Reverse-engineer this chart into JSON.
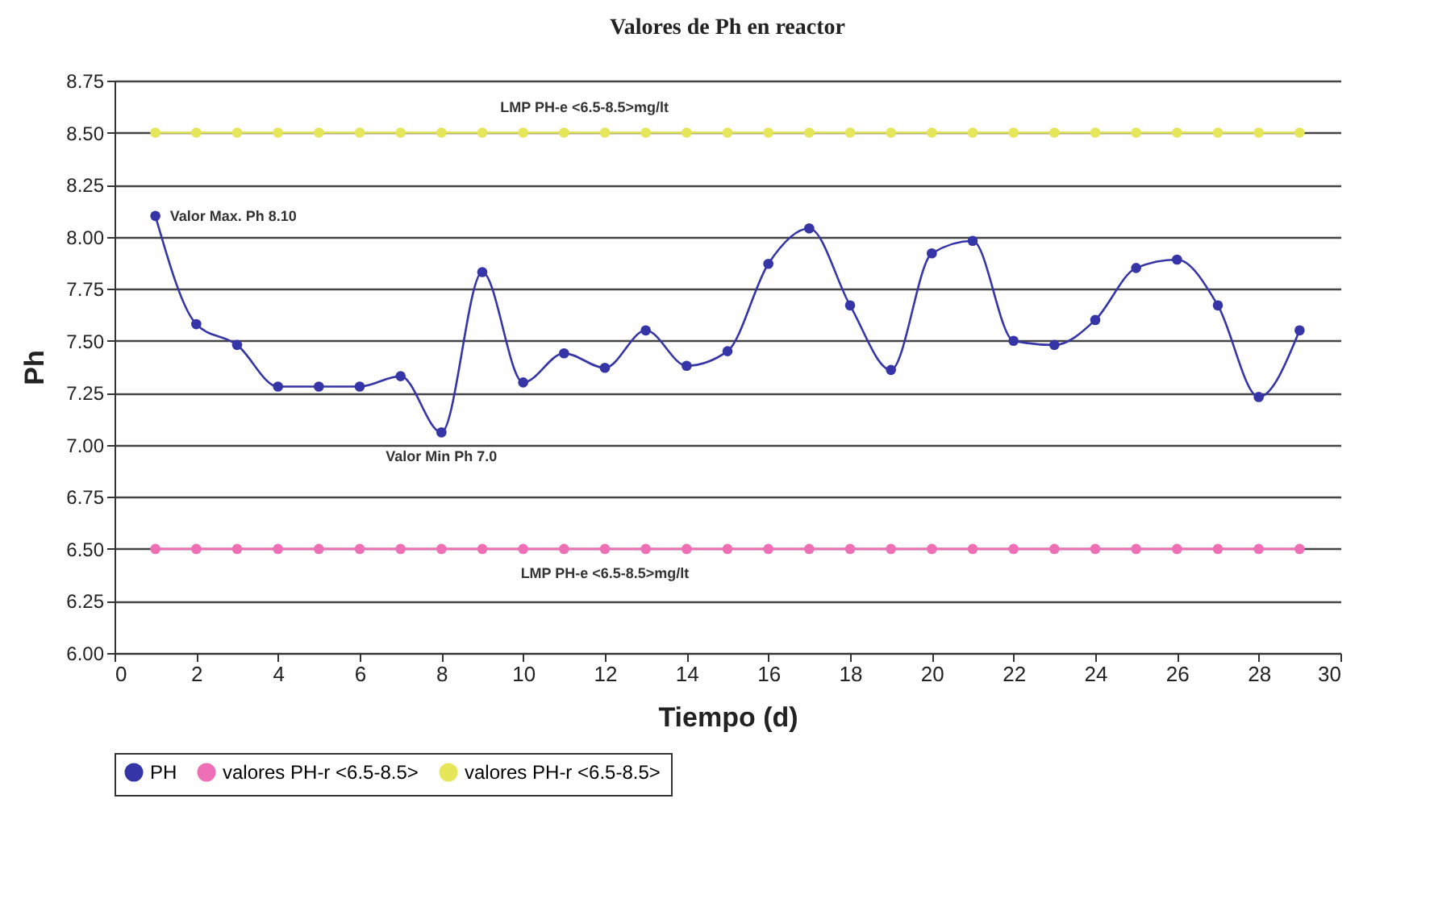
{
  "chart_data": {
    "type": "line",
    "title": "Valores de Ph en reactor",
    "xlabel": "Tiempo (d)",
    "ylabel": "Ph",
    "x": [
      1,
      2,
      3,
      4,
      5,
      6,
      7,
      8,
      9,
      10,
      11,
      12,
      13,
      14,
      15,
      16,
      17,
      18,
      19,
      20,
      21,
      22,
      23,
      24,
      25,
      26,
      27,
      28,
      29
    ],
    "series": [
      {
        "name": "PH",
        "color": "#3535a8",
        "values": [
          8.1,
          7.58,
          7.48,
          7.28,
          7.28,
          7.28,
          7.33,
          7.06,
          7.83,
          7.3,
          7.44,
          7.37,
          7.55,
          7.38,
          7.45,
          7.87,
          8.04,
          7.67,
          7.36,
          7.92,
          7.98,
          7.5,
          7.48,
          7.6,
          7.85,
          7.89,
          7.67,
          7.23,
          7.55
        ]
      },
      {
        "name": "valores PH-r <6.5-8.5>",
        "color": "#ee6fb5",
        "values": [
          6.5,
          6.5,
          6.5,
          6.5,
          6.5,
          6.5,
          6.5,
          6.5,
          6.5,
          6.5,
          6.5,
          6.5,
          6.5,
          6.5,
          6.5,
          6.5,
          6.5,
          6.5,
          6.5,
          6.5,
          6.5,
          6.5,
          6.5,
          6.5,
          6.5,
          6.5,
          6.5,
          6.5,
          6.5
        ]
      },
      {
        "name": "valores PH-r <6.5-8.5>",
        "color": "#e6e65a",
        "values": [
          8.5,
          8.5,
          8.5,
          8.5,
          8.5,
          8.5,
          8.5,
          8.5,
          8.5,
          8.5,
          8.5,
          8.5,
          8.5,
          8.5,
          8.5,
          8.5,
          8.5,
          8.5,
          8.5,
          8.5,
          8.5,
          8.5,
          8.5,
          8.5,
          8.5,
          8.5,
          8.5,
          8.5,
          8.5
        ]
      }
    ],
    "annotations": [
      {
        "text": "LMP PH-e <6.5-8.5>mg/lt",
        "x": 11.5,
        "y": 8.5
      },
      {
        "text": "Valor Max. Ph 8.10",
        "x": 1,
        "y": 8.1
      },
      {
        "text": "Valor Min  Ph 7.0",
        "x": 8,
        "y": 7.06
      },
      {
        "text": "LMP PH-e <6.5-8.5>mg/lt",
        "x": 12,
        "y": 6.5
      }
    ],
    "xlim": [
      0,
      30
    ],
    "xticks": [
      0,
      2,
      4,
      6,
      8,
      10,
      12,
      14,
      16,
      18,
      20,
      22,
      24,
      26,
      28,
      30
    ],
    "ylim": [
      6.0,
      8.75
    ],
    "yticks": [
      {
        "value": 6.0,
        "label": "6.00"
      },
      {
        "value": 6.25,
        "label": "6.25"
      },
      {
        "value": 6.5,
        "label": "6.50"
      },
      {
        "value": 6.75,
        "label": "6.75"
      },
      {
        "value": 7.0,
        "label": "7.00"
      },
      {
        "value": 7.25,
        "label": "7.25"
      },
      {
        "value": 7.5,
        "label": "7.50"
      },
      {
        "value": 7.75,
        "label": "7.75"
      },
      {
        "value": 8.0,
        "label": "8.00"
      },
      {
        "value": 8.25,
        "label": "8.25"
      },
      {
        "value": 8.5,
        "label": "8.50"
      },
      {
        "value": 8.75,
        "label": "8.75"
      }
    ],
    "grid": "y",
    "legend": "bottom",
    "marker": "circle",
    "line_style": "solid"
  }
}
